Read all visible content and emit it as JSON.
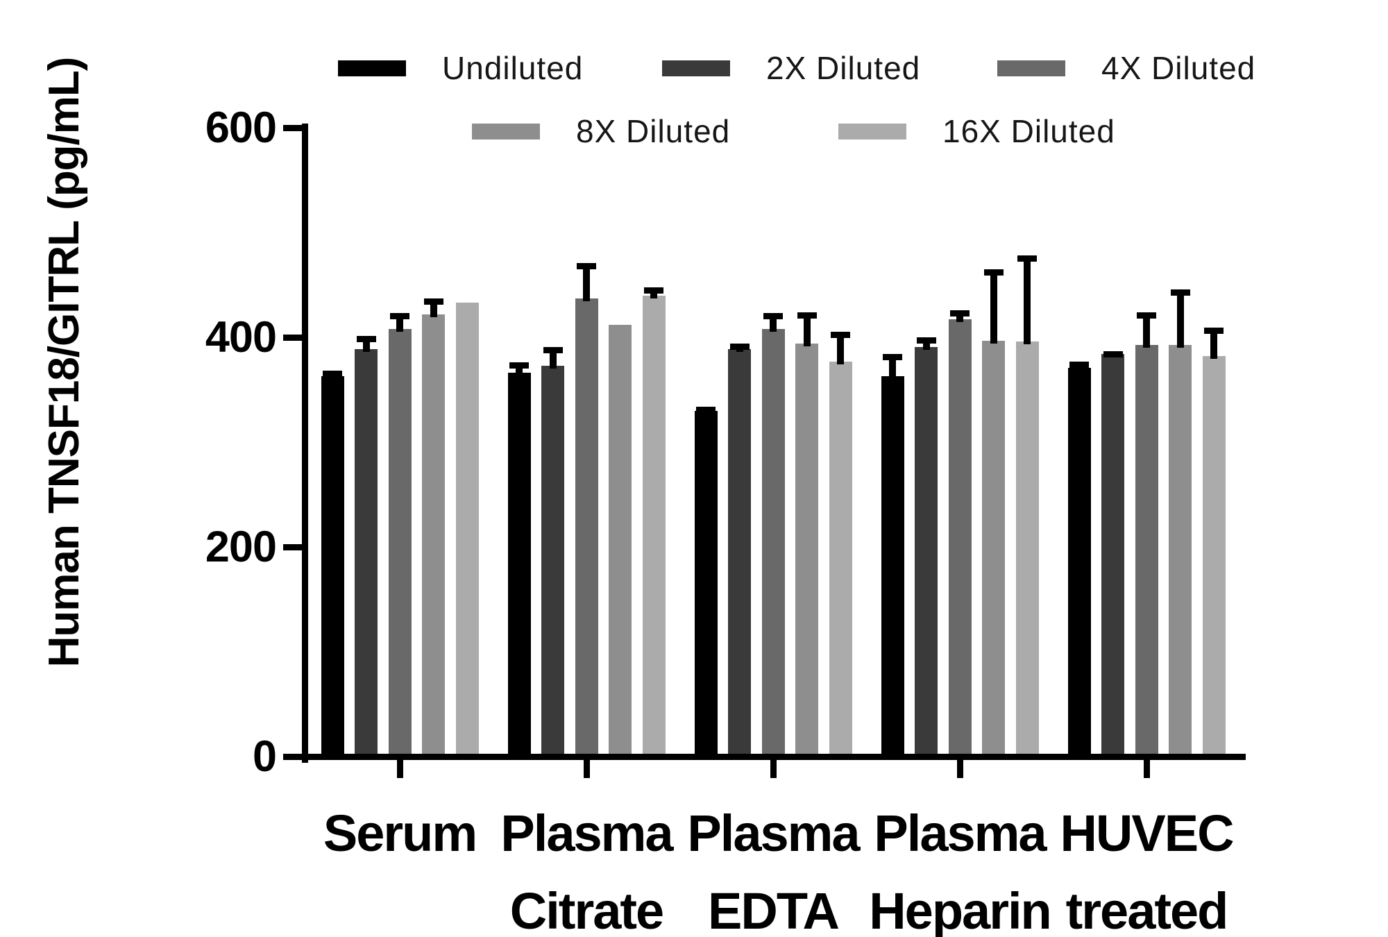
{
  "figure": {
    "background": "#ffffff"
  },
  "chart_data": {
    "type": "bar",
    "title": "",
    "xlabel": "",
    "ylabel": "Human TNSF18/GITRL (pg/mL)",
    "ylim": [
      0,
      600
    ],
    "yticks": [
      0,
      200,
      400,
      600
    ],
    "grid": false,
    "legend_position": "top, two rows",
    "error_bars": "upper standard deviation only, black stems with caps",
    "categories": [
      "Serum",
      "Plasma Citrate",
      "Plasma EDTA",
      "Plasma Heparin",
      "HUVEC treated"
    ],
    "category_lines": [
      [
        "Serum"
      ],
      [
        "Plasma",
        "Citrate"
      ],
      [
        "Plasma",
        "EDTA"
      ],
      [
        "Plasma",
        "Heparin"
      ],
      [
        "HUVEC",
        "treated"
      ]
    ],
    "series": [
      {
        "name": "Undiluted",
        "color": "#000000",
        "values": [
          363,
          366,
          330,
          363,
          371
        ],
        "sd": [
          5,
          10,
          4,
          21,
          6
        ]
      },
      {
        "name": "2X Diluted",
        "color": "#3a3a3a",
        "values": [
          389,
          373,
          389,
          391,
          384
        ],
        "sd": [
          12,
          18,
          5,
          9,
          3
        ]
      },
      {
        "name": "4X Diluted",
        "color": "#696969",
        "values": [
          408,
          437,
          408,
          417,
          393
        ],
        "sd": [
          15,
          34,
          15,
          9,
          31
        ]
      },
      {
        "name": "8X Diluted",
        "color": "#8e8e8e",
        "values": [
          422,
          412,
          394,
          397,
          393
        ],
        "sd": [
          15,
          0,
          30,
          68,
          53
        ]
      },
      {
        "name": "16X Diluted",
        "color": "#ababab",
        "values": [
          433,
          440,
          377,
          396,
          382
        ],
        "sd": [
          0,
          8,
          28,
          82,
          27
        ]
      }
    ]
  }
}
